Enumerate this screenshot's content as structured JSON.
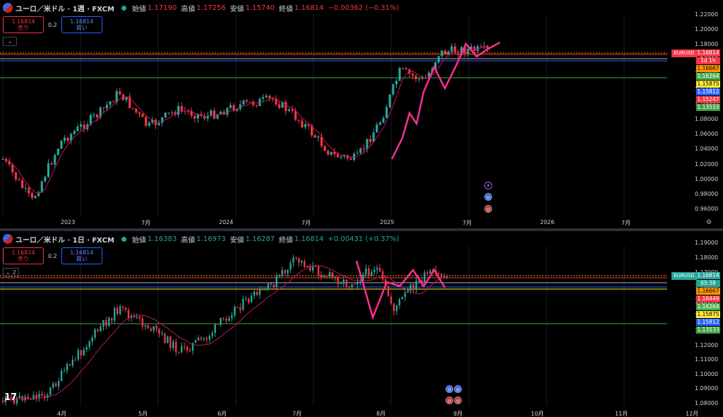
{
  "colors": {
    "up": "#26a69a",
    "down": "#f23645",
    "ma": "#c2185b",
    "drawing": "#ff2e93",
    "grid": "#1a1d24"
  },
  "pane1": {
    "symbol": "ユーロ／米ドル · 1週 · FXCM",
    "ohlc": {
      "open_label": "始値",
      "open": "1.17190",
      "high_label": "高値",
      "high": "1.17256",
      "low_label": "安値",
      "low": "1.15740",
      "close_label": "終値",
      "close": "1.16814",
      "change": "−0.00362 (−0.31%)"
    },
    "sell": {
      "price": "1.16814",
      "label": "売り"
    },
    "spread": "0.2",
    "buy": {
      "price": "1.16814",
      "label": "買い"
    },
    "collapse_icon": "chevron-down-icon",
    "y_ticks": [
      "1.22000",
      "1.20000",
      "1.18000",
      "1.16000",
      "1.14000",
      "1.12000",
      "1.10000",
      "1.08000",
      "1.06000",
      "1.04000",
      "1.02000",
      "1.00000",
      "0.98000",
      "0.96000"
    ],
    "x_ticks": [
      "2023",
      "7月",
      "2024",
      "7月",
      "2025",
      "7月",
      "2026",
      "7月"
    ],
    "symbol_tag": "EURUSD",
    "countdown": "1d 1h",
    "price_tags": [
      {
        "text": "1.16814",
        "color": "#f23645"
      },
      {
        "text": "1.16667",
        "color": "#ff9800"
      },
      {
        "text": "1.16264",
        "color": "#4caf50"
      },
      {
        "text": "1.15875",
        "color": "#ffeb3b"
      },
      {
        "text": "1.15812",
        "color": "#2962ff"
      },
      {
        "text": "1.15247",
        "color": "#f23645"
      },
      {
        "text": "1.13533",
        "color": "#43a047"
      }
    ]
  },
  "pane2": {
    "symbol": "ユーロ／米ドル · 1日 · FXCM",
    "ohlc": {
      "open_label": "始値",
      "open": "1.16383",
      "high_label": "高値",
      "high": "1.16973",
      "low_label": "安値",
      "low": "1.16287",
      "close_label": "終値",
      "close": "1.16814",
      "change": "+0.00431 (+0.37%)"
    },
    "sell": {
      "price": "1.16814",
      "label": "売り"
    },
    "spread": "0.2",
    "buy": {
      "price": "1.16814",
      "label": "買い"
    },
    "indicator_count": "2",
    "y_ticks": [
      "1.19000",
      "1.18000",
      "1.17000",
      "1.16000",
      "1.15000",
      "1.14000",
      "1.13000",
      "1.12000",
      "1.11000",
      "1.10000",
      "1.09000",
      "1.08000"
    ],
    "x_ticks": [
      "4月",
      "5月",
      "6月",
      "7月",
      "8月",
      "9月",
      "10月",
      "11月",
      "12月"
    ],
    "symbol_tag": "EURUSD",
    "countdown": "05:38",
    "price_tags": [
      {
        "text": "1.16814",
        "color": "#26a69a"
      },
      {
        "text": "1.16667",
        "color": "#ff9800"
      },
      {
        "text": "1.16449",
        "color": "#f23645"
      },
      {
        "text": "1.16264",
        "color": "#4caf50"
      },
      {
        "text": "1.15875",
        "color": "#ffeb3b"
      },
      {
        "text": "1.15812",
        "color": "#2962ff"
      },
      {
        "text": "1.13533",
        "color": "#43a047"
      }
    ]
  }
}
